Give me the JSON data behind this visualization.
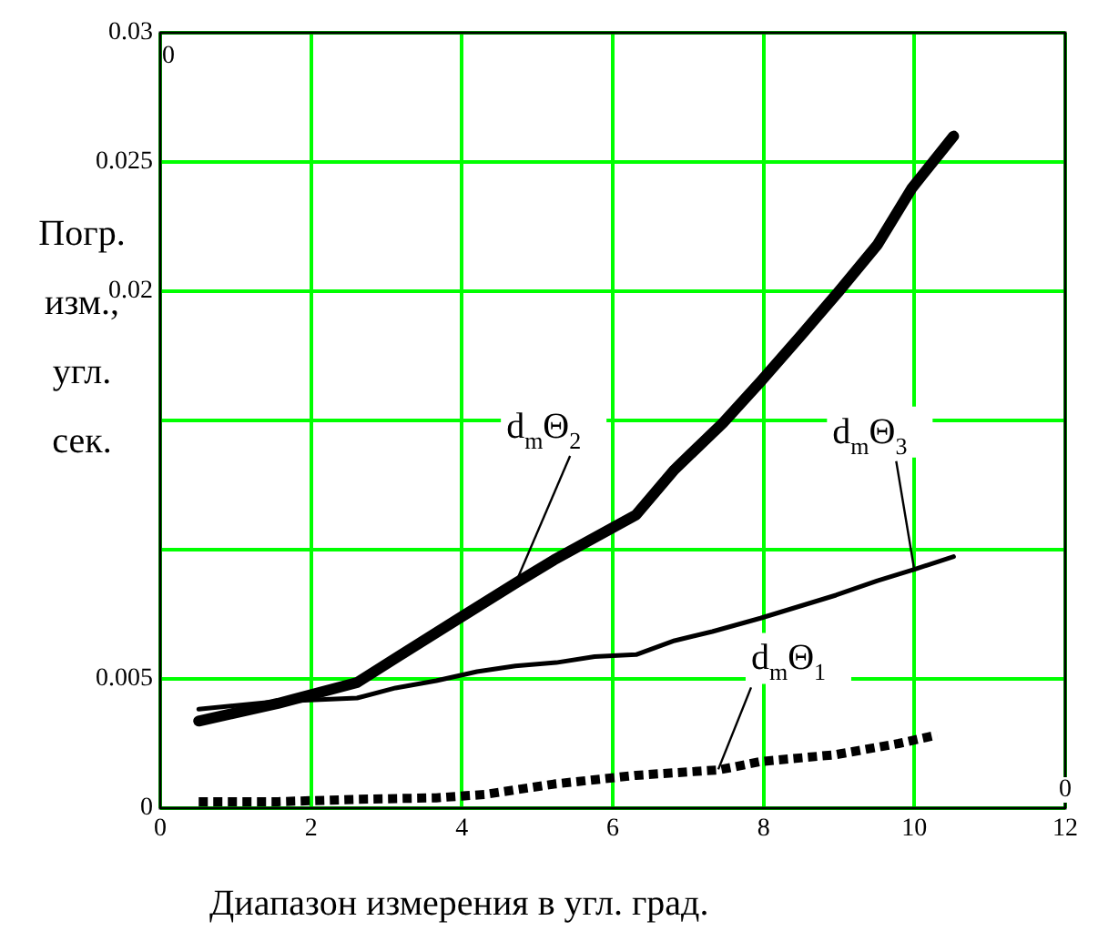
{
  "chart_data": {
    "type": "line",
    "xlabel": "Диапазон измерения в угл. град.",
    "ylabel": "Погр. изм., угл. сек.",
    "xlim": [
      0,
      12
    ],
    "xticks": [
      0,
      2,
      4,
      6,
      8,
      10,
      12
    ],
    "ylim": [
      0,
      0.03
    ],
    "yticks": [
      0,
      0.005,
      {
        "value": 0.01,
        "label": null
      },
      {
        "value": 0.015,
        "label": null
      },
      0.02,
      0.025,
      0.03
    ],
    "grid": true,
    "legend": false,
    "marker": "none",
    "series": [
      {
        "color": "#000000",
        "line_style": "dotted",
        "x": [
          0.51,
          1.56,
          2.61,
          3.66,
          4.3,
          5.22,
          6.31,
          7.41,
          7.96,
          8.96,
          9.79,
          10.3
        ],
        "values": [
          0.00025,
          0.00025,
          0.00034,
          0.0004,
          0.00053,
          0.00093,
          0.00127,
          0.00148,
          0.0018,
          0.00207,
          0.0025,
          0.00283
        ]
      },
      {
        "color": "#000000",
        "line_style": "solid",
        "x": [
          0.51,
          1.56,
          2.61,
          3.12,
          3.94,
          4.71,
          5.22,
          6.31,
          6.82,
          7.46,
          7.96,
          8.5,
          9.0,
          9.51,
          9.97,
          10.52
        ],
        "values": [
          0.00337,
          0.00405,
          0.00486,
          0.0058,
          0.0073,
          0.0087,
          0.0096,
          0.01135,
          0.0131,
          0.0149,
          0.0165,
          0.0183,
          0.02,
          0.0218,
          0.024,
          0.026
        ]
      },
      {
        "color": "#000000",
        "line_style": "solid",
        "x": [
          0.51,
          1.56,
          2.61,
          3.12,
          3.66,
          4.2,
          4.71,
          5.25,
          5.76,
          6.31,
          6.82,
          7.32,
          7.96,
          8.96,
          9.51,
          10.01,
          10.52
        ],
        "values": [
          0.00383,
          0.00413,
          0.00426,
          0.00465,
          0.00493,
          0.00528,
          0.0055,
          0.00563,
          0.00586,
          0.00594,
          0.00648,
          0.00683,
          0.00735,
          0.00824,
          0.0088,
          0.00925,
          0.00973
        ]
      }
    ],
    "annotations": [
      {
        "text": "d$_{m}$Θ$_{1}$",
        "x": 7.4,
        "y": 0.0015
      },
      {
        "text": "d$_{m}$Θ$_{2}$",
        "x": 4.71,
        "y": 0.0087
      },
      {
        "text": "d$_{m}$Θ$_{3}$",
        "x": 10,
        "y": 0.0092
      },
      "0",
      "0"
    ]
  }
}
